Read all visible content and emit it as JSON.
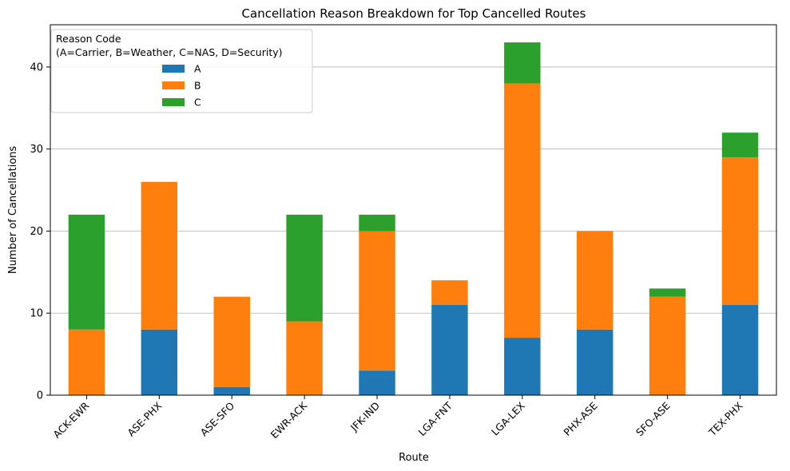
{
  "chart_data": {
    "type": "bar",
    "stacked": true,
    "title": "Cancellation Reason Breakdown for Top Cancelled Routes",
    "xlabel": "Route",
    "ylabel": "Number of Cancellations",
    "categories": [
      "ACK-EWR",
      "ASE-PHX",
      "ASE-SFO",
      "EWR-ACK",
      "JFK-IND",
      "LGA-FNT",
      "LGA-LEX",
      "PHX-ASE",
      "SFO-ASE",
      "TEX-PHX"
    ],
    "series": [
      {
        "name": "A",
        "color": "#1f77b4",
        "values": [
          0,
          8,
          1,
          0,
          3,
          11,
          7,
          8,
          0,
          11
        ]
      },
      {
        "name": "B",
        "color": "#ff7f0e",
        "values": [
          8,
          18,
          11,
          9,
          17,
          3,
          31,
          12,
          12,
          18
        ]
      },
      {
        "name": "C",
        "color": "#2ca02c",
        "values": [
          14,
          0,
          0,
          13,
          2,
          0,
          5,
          0,
          1,
          3
        ]
      }
    ],
    "ylim": [
      0,
      45.15
    ],
    "yticks": [
      0,
      10,
      20,
      30,
      40
    ],
    "grid": "y",
    "legend": {
      "title_line1": "Reason Code",
      "title_line2": "(A=Carrier, B=Weather, C=NAS, D=Security)",
      "placement": "top-left"
    }
  }
}
